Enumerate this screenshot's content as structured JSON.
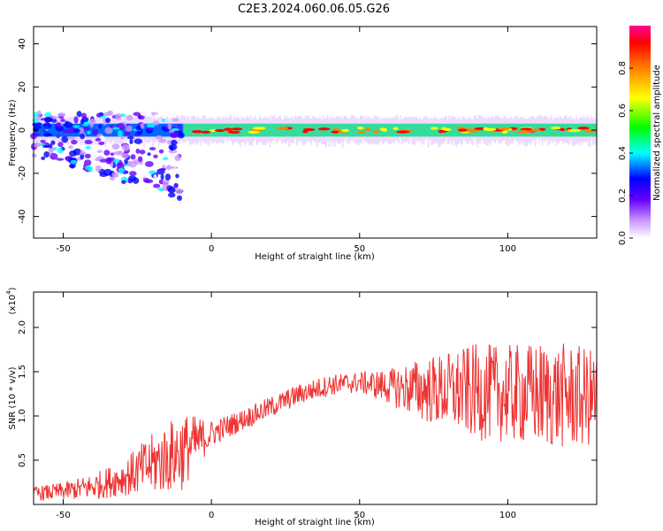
{
  "title": "C2E3.2024.060.06.05.G26",
  "chart_data": [
    {
      "type": "heatmap",
      "xlabel": "Height of straight line (km)",
      "ylabel": "Frequency (Hz)",
      "xlim": [
        -60,
        130
      ],
      "ylim": [
        -50,
        48
      ],
      "xticks": [
        -50,
        0,
        50,
        100
      ],
      "yticks": [
        -40,
        -20,
        0,
        20,
        40
      ],
      "colorbar": {
        "label": "Normalized spectral amplitude",
        "range": [
          0.0,
          1.0
        ],
        "ticks": [
          0.0,
          0.2,
          0.4,
          0.6,
          0.8
        ],
        "colormap": [
          "#ffffff",
          "#cc99ff",
          "#6600ff",
          "#0000ff",
          "#00ffff",
          "#00ff00",
          "#ffff00",
          "#ff8000",
          "#ff0000",
          "#ff0099"
        ]
      },
      "features": {
        "main_band_center_hz": 0,
        "main_band_halfwidth_hz": 3,
        "main_band_x_range_km": [
          -60,
          130
        ],
        "scatter_region_x_range_km": [
          -60,
          -10
        ],
        "scatter_region_freq_range_hz": [
          -38,
          12
        ]
      }
    },
    {
      "type": "line",
      "xlabel": "Height of straight line (km)",
      "ylabel": "SNR (10 * v/v)",
      "yscale_label": "(x10",
      "yscale_exponent": "4",
      "xlim": [
        -60,
        130
      ],
      "ylim": [
        0.0,
        2.4
      ],
      "xticks": [
        -50,
        0,
        50,
        100
      ],
      "yticks": [
        0.5,
        1.0,
        1.5,
        2.0
      ],
      "series_color": "#ee3333",
      "trend": {
        "x": [
          -60,
          -50,
          -40,
          -30,
          -20,
          -10,
          0,
          10,
          20,
          30,
          40,
          50,
          60,
          70,
          80,
          90,
          100,
          110,
          120,
          130
        ],
        "y": [
          0.12,
          0.15,
          0.2,
          0.3,
          0.45,
          0.6,
          0.8,
          0.95,
          1.1,
          1.25,
          1.35,
          1.38,
          1.33,
          1.3,
          1.28,
          1.27,
          1.25,
          1.24,
          1.22,
          1.2
        ],
        "amplitude": [
          0.08,
          0.1,
          0.15,
          0.2,
          0.35,
          0.45,
          0.15,
          0.12,
          0.12,
          0.12,
          0.12,
          0.12,
          0.2,
          0.35,
          0.45,
          0.55,
          0.55,
          0.6,
          0.6,
          0.55
        ]
      }
    }
  ]
}
